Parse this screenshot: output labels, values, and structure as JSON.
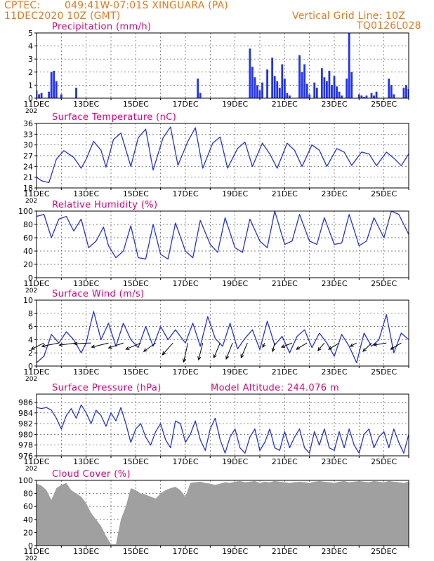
{
  "header": {
    "source": "CPTEC:",
    "location": "049:41W-07:01S  XINGUARA (PA)",
    "datetime": "11DEC2020 10Z (GMT)",
    "grid_note": "Vertical Grid Line: 10Z",
    "model_code": "TQ0126L028",
    "year_fragment": "202"
  },
  "colors": {
    "header": "#e07a1f",
    "panel_title": "#e0007c",
    "series": "#2233dd",
    "bars": "#2233ee",
    "cloud": "#a0a0a0",
    "wind_arrow": "#000000"
  },
  "chart_data": [
    {
      "type": "bar",
      "title": "Precipitation (mm/h)",
      "ylim": [
        0,
        5
      ],
      "yticks": [
        "0",
        "1",
        "2",
        "3",
        "4",
        "5"
      ],
      "xlim_days": [
        11,
        26
      ],
      "xticks": [
        "11DEC",
        "13DEC",
        "15DEC",
        "17DEC",
        "19DEC",
        "21DEC",
        "23DEC",
        "25DEC"
      ],
      "x": [
        11.0,
        11.1,
        11.2,
        11.5,
        11.6,
        11.7,
        11.8,
        12.0,
        12.6,
        17.5,
        17.6,
        19.6,
        19.7,
        19.8,
        19.9,
        20.0,
        20.1,
        20.3,
        20.5,
        20.6,
        20.7,
        20.8,
        20.9,
        21.0,
        21.1,
        21.2,
        21.6,
        21.7,
        21.8,
        21.9,
        22.0,
        22.2,
        22.3,
        22.5,
        22.6,
        22.7,
        22.8,
        22.9,
        23.0,
        23.1,
        23.2,
        23.3,
        23.5,
        23.6,
        23.7,
        24.0,
        24.1,
        24.2,
        24.3,
        24.5,
        24.6,
        24.7,
        25.2,
        25.3,
        25.4,
        25.8,
        25.9,
        26.0
      ],
      "values": [
        0.6,
        0.3,
        0.4,
        0.5,
        2.0,
        2.1,
        1.3,
        0.3,
        0.8,
        1.5,
        0.4,
        3.8,
        2.4,
        1.6,
        1.0,
        0.6,
        1.2,
        2.2,
        3.1,
        1.7,
        1.3,
        0.8,
        2.6,
        1.5,
        0.4,
        0.2,
        3.3,
        2.0,
        2.6,
        1.1,
        0.3,
        1.2,
        0.8,
        2.3,
        1.6,
        1.3,
        2.1,
        1.0,
        1.7,
        0.9,
        0.5,
        0.2,
        1.5,
        5.0,
        2.0,
        0.3,
        0.2,
        0.1,
        0.2,
        0.4,
        0.2,
        0.5,
        1.5,
        1.0,
        0.3,
        0.8,
        1.0,
        0.7
      ]
    },
    {
      "type": "line",
      "title": "Surface Temperature (nC)",
      "ylim": [
        18,
        36
      ],
      "yticks": [
        "18",
        "21",
        "24",
        "27",
        "30",
        "33",
        "36"
      ],
      "xlim_days": [
        11,
        26
      ],
      "xticks": [
        "11DEC",
        "13DEC",
        "15DEC",
        "17DEC",
        "19DEC",
        "21DEC",
        "23DEC",
        "25DEC"
      ],
      "x": [
        11.0,
        11.2,
        11.5,
        11.8,
        12.1,
        12.5,
        12.8,
        13.0,
        13.3,
        13.6,
        13.8,
        14.1,
        14.4,
        14.8,
        15.1,
        15.4,
        15.7,
        16.1,
        16.4,
        16.7,
        17.1,
        17.4,
        17.7,
        18.1,
        18.4,
        18.7,
        19.1,
        19.4,
        19.7,
        20.1,
        20.4,
        20.7,
        21.1,
        21.4,
        21.7,
        22.1,
        22.4,
        22.7,
        23.1,
        23.4,
        23.7,
        24.1,
        24.4,
        24.7,
        25.1,
        25.4,
        25.7,
        26.0
      ],
      "values": [
        21.0,
        20.0,
        19.5,
        26.0,
        28.4,
        26.5,
        23.5,
        26.0,
        31.0,
        28.5,
        23.8,
        31.5,
        33.3,
        24.0,
        32.0,
        34.4,
        23.0,
        32.0,
        35.0,
        24.3,
        31.0,
        34.8,
        23.5,
        30.5,
        32.2,
        23.5,
        29.0,
        30.8,
        24.0,
        30.5,
        27.5,
        23.5,
        30.5,
        28.5,
        24.0,
        30.0,
        28.5,
        24.0,
        29.0,
        28.0,
        24.3,
        28.0,
        27.5,
        24.2,
        28.0,
        26.3,
        24.2,
        27.5
      ]
    },
    {
      "type": "line",
      "title": "Relative Humidity (%)",
      "ylim": [
        0,
        100
      ],
      "yticks": [
        "0",
        "20",
        "40",
        "60",
        "80",
        "100"
      ],
      "xlim_days": [
        11,
        26
      ],
      "xticks": [
        "11DEC",
        "13DEC",
        "15DEC",
        "17DEC",
        "19DEC",
        "21DEC",
        "23DEC",
        "25DEC"
      ],
      "x": [
        11.0,
        11.3,
        11.6,
        11.9,
        12.2,
        12.5,
        12.8,
        13.1,
        13.4,
        13.7,
        13.9,
        14.2,
        14.5,
        14.8,
        15.1,
        15.4,
        15.7,
        16.0,
        16.3,
        16.6,
        17.0,
        17.3,
        17.6,
        18.0,
        18.3,
        18.6,
        19.0,
        19.3,
        19.6,
        20.0,
        20.3,
        20.6,
        21.0,
        21.3,
        21.6,
        22.0,
        22.3,
        22.6,
        23.0,
        23.3,
        23.6,
        24.0,
        24.3,
        24.6,
        25.0,
        25.3,
        25.6,
        26.0
      ],
      "values": [
        92.0,
        95.0,
        60.0,
        88.0,
        92.0,
        70.0,
        88.0,
        45.0,
        55.0,
        76.0,
        48.0,
        30.0,
        40.0,
        78.0,
        30.0,
        28.0,
        80.0,
        35.0,
        28.0,
        82.0,
        40.0,
        30.0,
        86.0,
        50.0,
        38.0,
        90.0,
        45.0,
        38.0,
        88.0,
        55.0,
        45.0,
        100.0,
        50.0,
        55.0,
        95.0,
        55.0,
        50.0,
        90.0,
        50.0,
        52.0,
        95.0,
        48.0,
        55.0,
        90.0,
        60.0,
        100.0,
        95.0,
        65.0
      ]
    },
    {
      "type": "line",
      "title": "Surface Wind (m/s)",
      "ylim": [
        0,
        10
      ],
      "yticks": [
        "0",
        "2",
        "4",
        "6",
        "8",
        "10"
      ],
      "xlim_days": [
        11,
        26
      ],
      "xticks": [
        "11DEC",
        "13DEC",
        "15DEC",
        "17DEC",
        "19DEC",
        "21DEC",
        "23DEC",
        "25DEC"
      ],
      "x": [
        11.0,
        11.3,
        11.6,
        11.9,
        12.2,
        12.5,
        12.8,
        13.0,
        13.3,
        13.6,
        13.9,
        14.2,
        14.5,
        14.8,
        15.1,
        15.4,
        15.7,
        16.0,
        16.3,
        16.6,
        17.0,
        17.3,
        17.6,
        17.9,
        18.2,
        18.5,
        18.8,
        19.1,
        19.4,
        19.7,
        20.0,
        20.3,
        20.6,
        20.9,
        21.2,
        21.5,
        21.8,
        22.1,
        22.4,
        22.7,
        23.0,
        23.3,
        23.6,
        23.9,
        24.2,
        24.5,
        24.8,
        25.1,
        25.4,
        25.7,
        26.0
      ],
      "values": [
        0.5,
        1.5,
        4.8,
        3.5,
        5.2,
        4.0,
        2.0,
        3.5,
        8.3,
        4.0,
        6.5,
        3.0,
        6.5,
        4.0,
        2.8,
        6.0,
        3.0,
        6.0,
        4.0,
        5.5,
        3.5,
        6.5,
        3.0,
        7.5,
        4.2,
        3.0,
        6.5,
        2.6,
        4.2,
        5.5,
        2.5,
        6.8,
        3.2,
        4.5,
        2.0,
        4.5,
        5.5,
        2.8,
        5.0,
        3.5,
        1.5,
        4.8,
        3.0,
        0.5,
        5.0,
        3.0,
        4.0,
        7.8,
        2.0,
        5.0,
        4.0
      ],
      "arrow_days": [
        11.3,
        11.9,
        12.6,
        13.2,
        13.9,
        14.5,
        15.2,
        15.8,
        16.5,
        17.1,
        17.7,
        18.4,
        18.9,
        19.5,
        20.2,
        20.6,
        21.3,
        21.9,
        22.6,
        23.2,
        23.9,
        24.5,
        25.1,
        25.7
      ],
      "arrow_u": [
        3.0,
        4.0,
        4.0,
        4.0,
        4.0,
        3.5,
        3.5,
        2.8,
        2.5,
        1.0,
        1.0,
        1.5,
        1.5,
        1.5,
        0.5,
        0.5,
        2.5,
        2.5,
        1.5,
        2.5,
        1.5,
        2.0,
        3.0,
        2.5
      ],
      "arrow_v": [
        1.5,
        0.8,
        0.5,
        0.2,
        1.0,
        1.2,
        1.5,
        2.0,
        2.8,
        4.5,
        4.0,
        3.5,
        3.8,
        3.5,
        1.0,
        2.0,
        1.0,
        1.5,
        1.8,
        1.5,
        0.8,
        2.0,
        0.5,
        1.5
      ]
    },
    {
      "type": "line",
      "title": "Surface Pressure (hPa)",
      "subtitle": "Model Altitude: 244.076 m",
      "ylim": [
        976,
        987.5
      ],
      "yticks": [
        "976",
        "978",
        "980",
        "982",
        "984",
        "986"
      ],
      "xlim_days": [
        11,
        26
      ],
      "xticks": [
        "11DEC",
        "13DEC",
        "15DEC",
        "17DEC",
        "19DEC",
        "21DEC",
        "23DEC",
        "25DEC"
      ],
      "x": [
        11.0,
        11.2,
        11.4,
        11.6,
        11.8,
        12.0,
        12.2,
        12.4,
        12.6,
        12.8,
        13.0,
        13.2,
        13.4,
        13.6,
        13.8,
        14.0,
        14.2,
        14.4,
        14.6,
        14.8,
        15.0,
        15.2,
        15.4,
        15.6,
        15.8,
        16.0,
        16.2,
        16.4,
        16.6,
        16.8,
        17.0,
        17.2,
        17.4,
        17.6,
        17.8,
        18.0,
        18.2,
        18.4,
        18.6,
        18.8,
        19.0,
        19.2,
        19.4,
        19.6,
        19.8,
        20.0,
        20.2,
        20.4,
        20.6,
        20.8,
        21.0,
        21.2,
        21.4,
        21.6,
        21.8,
        22.0,
        22.2,
        22.4,
        22.6,
        22.8,
        23.0,
        23.2,
        23.4,
        23.6,
        23.8,
        24.0,
        24.2,
        24.4,
        24.6,
        24.8,
        25.0,
        25.2,
        25.4,
        25.6,
        25.8,
        26.0
      ],
      "values": [
        985.0,
        984.8,
        985.0,
        984.5,
        983.0,
        981.0,
        983.5,
        984.8,
        983.0,
        985.5,
        984.0,
        982.0,
        984.5,
        983.5,
        981.5,
        984.0,
        982.5,
        985.0,
        982.0,
        978.5,
        981.0,
        982.0,
        979.5,
        978.0,
        980.5,
        982.0,
        979.0,
        977.5,
        982.5,
        982.0,
        978.5,
        980.0,
        982.5,
        979.0,
        977.0,
        981.0,
        983.0,
        979.0,
        976.5,
        979.5,
        981.0,
        977.5,
        976.5,
        979.5,
        981.0,
        977.0,
        978.5,
        981.0,
        977.5,
        977.0,
        980.5,
        977.5,
        979.5,
        981.0,
        977.5,
        976.5,
        980.5,
        978.0,
        981.0,
        977.5,
        977.0,
        980.5,
        977.5,
        981.0,
        978.0,
        976.5,
        980.0,
        981.0,
        977.5,
        979.5,
        980.5,
        977.5,
        981.0,
        978.5,
        976.5,
        980.0
      ]
    },
    {
      "type": "area",
      "title": "Cloud Cover (%)",
      "ylim": [
        0,
        100
      ],
      "yticks": [
        "0",
        "20",
        "40",
        "60",
        "80",
        "100"
      ],
      "xlim_days": [
        11,
        26
      ],
      "xticks": [
        "11DEC",
        "13DEC",
        "15DEC",
        "17DEC",
        "19DEC",
        "21DEC",
        "23DEC",
        "25DEC"
      ],
      "x": [
        11.0,
        11.2,
        11.4,
        11.6,
        11.8,
        12.0,
        12.2,
        12.4,
        12.6,
        12.8,
        13.0,
        13.2,
        13.4,
        13.6,
        13.8,
        14.0,
        14.2,
        14.4,
        14.6,
        14.8,
        15.0,
        15.2,
        15.4,
        15.6,
        15.8,
        16.0,
        16.2,
        16.4,
        16.6,
        16.8,
        17.0,
        17.2,
        17.4,
        17.6,
        17.8,
        18.0,
        18.2,
        18.4,
        18.6,
        18.8,
        19.0,
        19.2,
        19.4,
        19.6,
        19.8,
        20.0,
        20.2,
        20.4,
        20.6,
        20.8,
        21.0,
        21.2,
        21.4,
        21.6,
        21.8,
        22.0,
        22.2,
        22.4,
        22.6,
        22.8,
        23.0,
        23.2,
        23.4,
        23.6,
        23.8,
        24.0,
        24.2,
        24.4,
        24.6,
        24.8,
        25.0,
        25.2,
        25.4,
        25.6,
        25.8,
        26.0
      ],
      "values": [
        95.0,
        92.0,
        85.0,
        70.0,
        88.0,
        93.0,
        96.0,
        85.0,
        80.0,
        75.0,
        65.0,
        50.0,
        40.0,
        30.0,
        15.0,
        2.0,
        2.0,
        40.0,
        60.0,
        88.0,
        85.0,
        80.0,
        78.0,
        75.0,
        72.0,
        80.0,
        85.0,
        88.0,
        90.0,
        85.0,
        75.0,
        96.0,
        97.0,
        98.0,
        96.0,
        95.0,
        93.0,
        95.0,
        97.0,
        96.0,
        98.0,
        99.0,
        97.0,
        98.0,
        99.0,
        96.0,
        98.0,
        97.0,
        99.0,
        98.0,
        97.0,
        96.0,
        97.0,
        98.0,
        97.0,
        96.0,
        98.0,
        99.0,
        98.0,
        97.0,
        96.0,
        98.0,
        99.0,
        97.0,
        98.0,
        99.0,
        98.0,
        97.0,
        99.0,
        98.0,
        97.0,
        99.0,
        98.0,
        97.0,
        96.0,
        98.0
      ]
    }
  ]
}
